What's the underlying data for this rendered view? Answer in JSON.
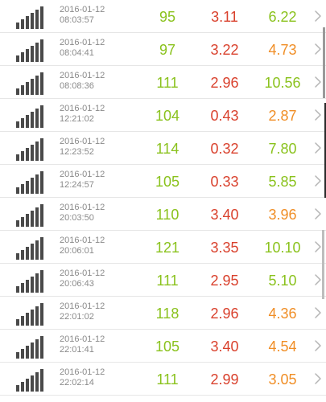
{
  "colors": {
    "green": "#8ac21d",
    "red": "#d9412d",
    "orange": "#f08e26",
    "gray_text": "#8a8a8a",
    "signal": "#4a4a4a"
  },
  "icons": {
    "signal": "signal-strength-icon",
    "chevron": "chevron-right-icon"
  },
  "rows": [
    {
      "date": "2016-01-12",
      "time": "08:03:57",
      "v1": "95",
      "v2": "3.11",
      "v3": "6.22",
      "c1": "#8ac21d",
      "c2": "#d9412d",
      "c3": "#8ac21d"
    },
    {
      "date": "2016-01-12",
      "time": "08:04:41",
      "v1": "97",
      "v2": "3.22",
      "v3": "4.73",
      "c1": "#8ac21d",
      "c2": "#d9412d",
      "c3": "#f08e26"
    },
    {
      "date": "2016-01-12",
      "time": "08:08:36",
      "v1": "111",
      "v2": "2.96",
      "v3": "10.56",
      "c1": "#8ac21d",
      "c2": "#d9412d",
      "c3": "#8ac21d"
    },
    {
      "date": "2016-01-12",
      "time": "12:21:02",
      "v1": "104",
      "v2": "0.43",
      "v3": "2.87",
      "c1": "#8ac21d",
      "c2": "#d9412d",
      "c3": "#f08e26"
    },
    {
      "date": "2016-01-12",
      "time": "12:23:52",
      "v1": "114",
      "v2": "0.32",
      "v3": "7.80",
      "c1": "#8ac21d",
      "c2": "#d9412d",
      "c3": "#8ac21d"
    },
    {
      "date": "2016-01-12",
      "time": "12:24:57",
      "v1": "105",
      "v2": "0.33",
      "v3": "5.85",
      "c1": "#8ac21d",
      "c2": "#d9412d",
      "c3": "#8ac21d"
    },
    {
      "date": "2016-01-12",
      "time": "20:03:50",
      "v1": "110",
      "v2": "3.40",
      "v3": "3.96",
      "c1": "#8ac21d",
      "c2": "#d9412d",
      "c3": "#f08e26"
    },
    {
      "date": "2016-01-12",
      "time": "20:06:01",
      "v1": "121",
      "v2": "3.35",
      "v3": "10.10",
      "c1": "#8ac21d",
      "c2": "#d9412d",
      "c3": "#8ac21d"
    },
    {
      "date": "2016-01-12",
      "time": "20:06:43",
      "v1": "111",
      "v2": "2.95",
      "v3": "5.10",
      "c1": "#8ac21d",
      "c2": "#d9412d",
      "c3": "#8ac21d"
    },
    {
      "date": "2016-01-12",
      "time": "22:01:02",
      "v1": "118",
      "v2": "2.96",
      "v3": "4.36",
      "c1": "#8ac21d",
      "c2": "#d9412d",
      "c3": "#f08e26"
    },
    {
      "date": "2016-01-12",
      "time": "22:01:41",
      "v1": "105",
      "v2": "3.40",
      "v3": "4.54",
      "c1": "#8ac21d",
      "c2": "#d9412d",
      "c3": "#f08e26"
    },
    {
      "date": "2016-01-12",
      "time": "22:02:14",
      "v1": "111",
      "v2": "2.99",
      "v3": "3.05",
      "c1": "#8ac21d",
      "c2": "#d9412d",
      "c3": "#f08e26"
    }
  ]
}
